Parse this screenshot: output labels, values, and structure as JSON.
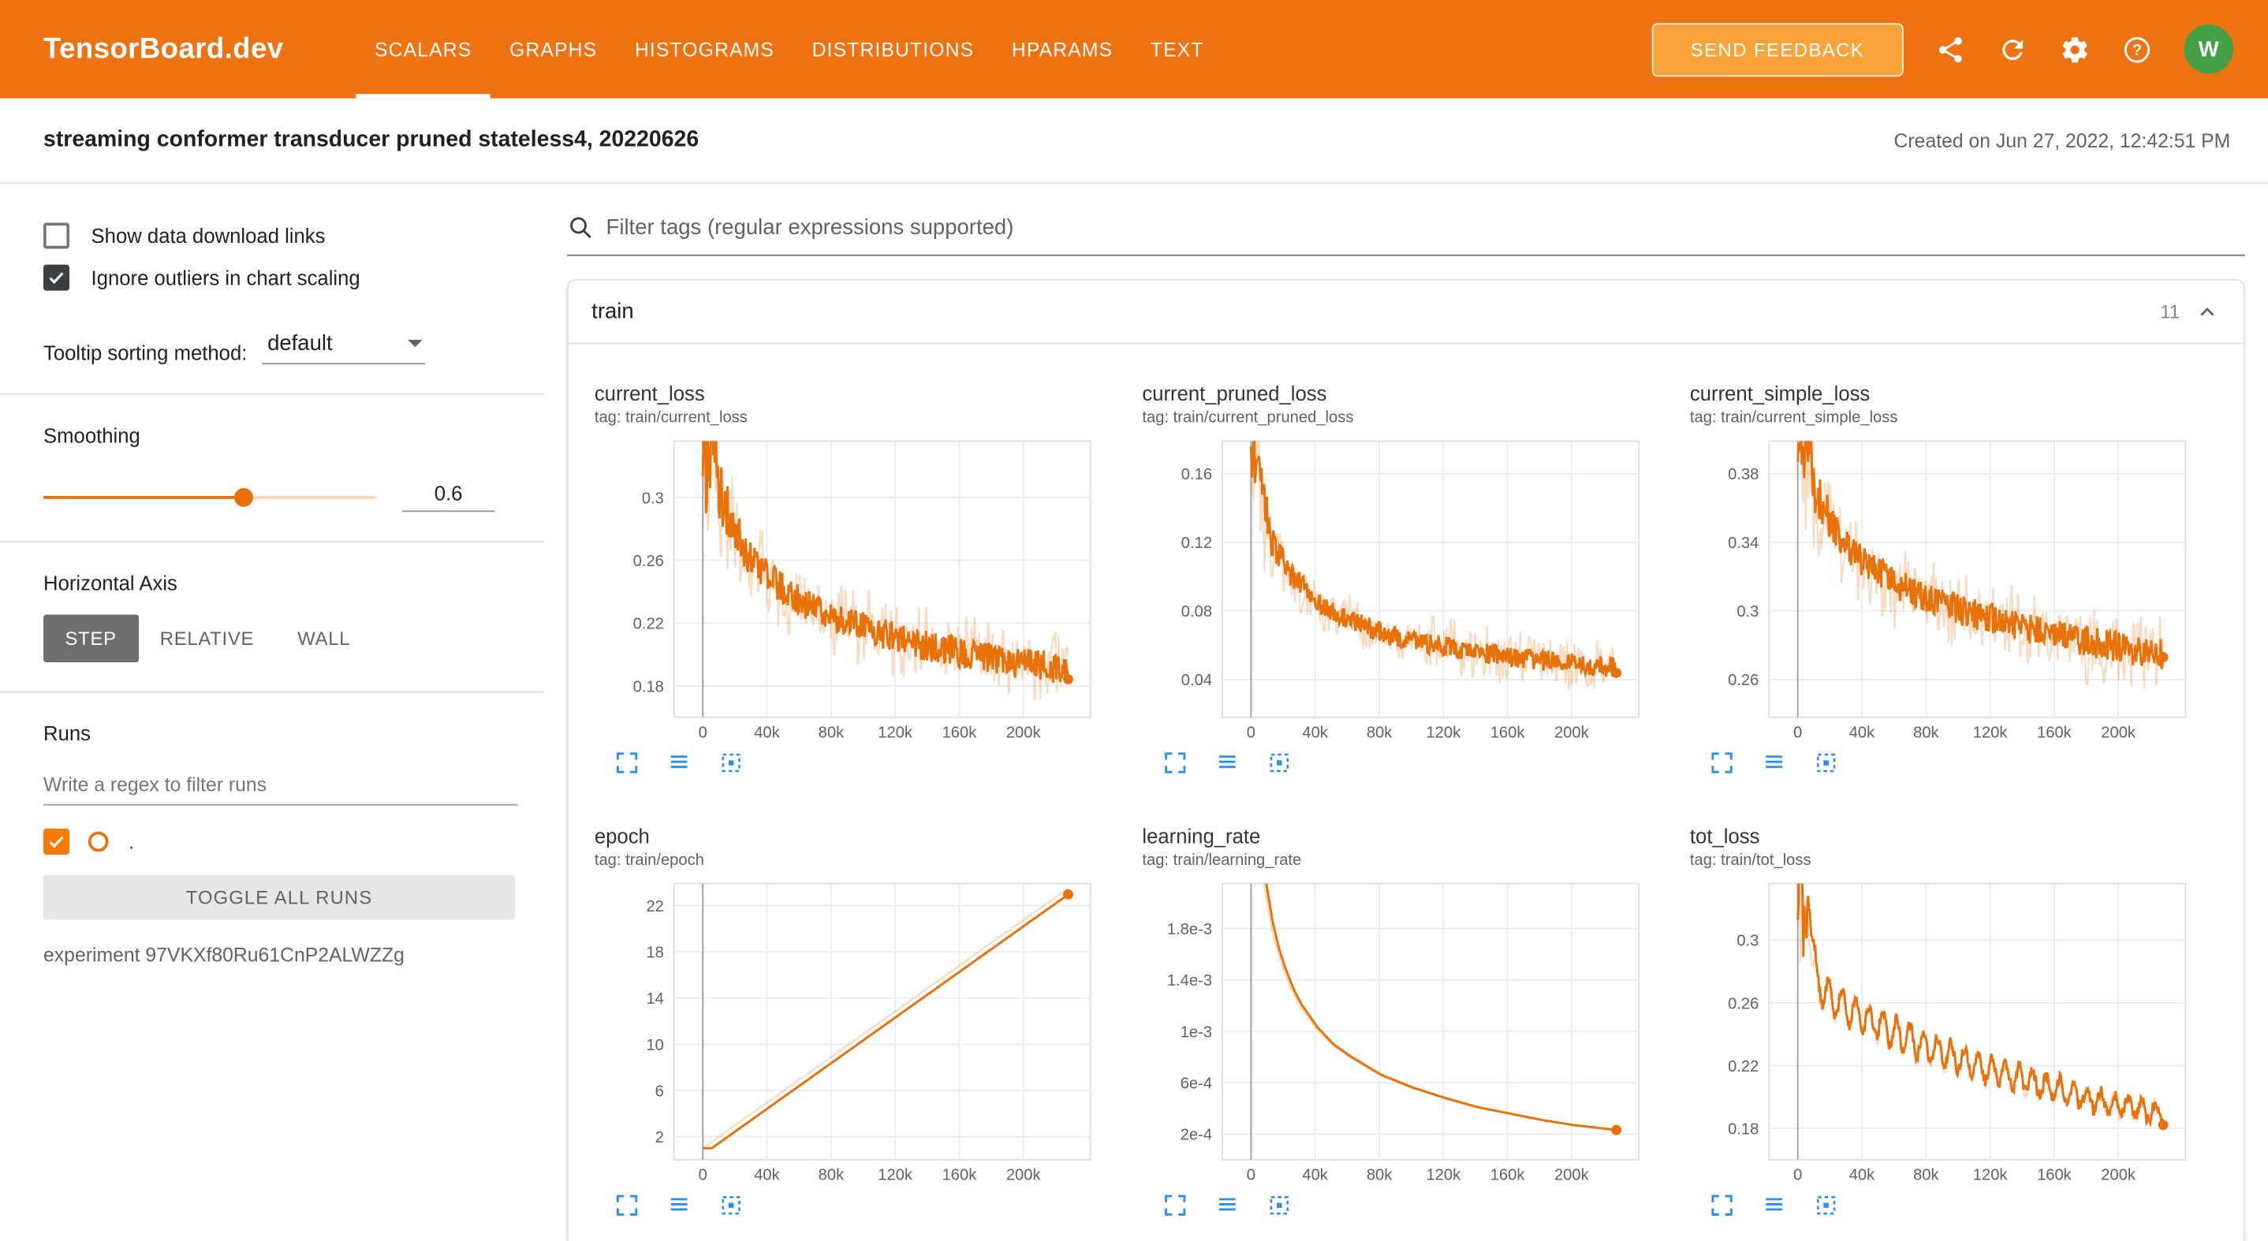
{
  "colors": {
    "header_bg": "#ee7211",
    "feedback_bg": "#f9a43b",
    "avatar_bg": "#43a047",
    "icon_blue": "#2b90ed",
    "series_orange": "#e8710a",
    "checkbox_dark": "#3c4043",
    "run_orange": "#f57c00"
  },
  "header": {
    "brand": "TensorBoard.dev",
    "tabs": [
      {
        "label": "SCALARS",
        "active": true
      },
      {
        "label": "GRAPHS",
        "active": false
      },
      {
        "label": "HISTOGRAMS",
        "active": false
      },
      {
        "label": "DISTRIBUTIONS",
        "active": false
      },
      {
        "label": "HPARAMS",
        "active": false
      },
      {
        "label": "TEXT",
        "active": false
      }
    ],
    "send_feedback_label": "SEND FEEDBACK",
    "avatar_letter": "W"
  },
  "titlebar": {
    "experiment_title": "streaming conformer transducer pruned stateless4, 20220626",
    "created": "Created on Jun 27, 2022, 12:42:51 PM"
  },
  "sidebar": {
    "show_download": {
      "label": "Show data download links",
      "checked": false
    },
    "ignore_outliers": {
      "label": "Ignore outliers in chart scaling",
      "checked": true
    },
    "tooltip_sorting": {
      "label": "Tooltip sorting method:",
      "value": "default"
    },
    "smoothing": {
      "label": "Smoothing",
      "value": "0.6",
      "fraction": 0.6
    },
    "horizontal_axis": {
      "label": "Horizontal Axis",
      "options": [
        "STEP",
        "RELATIVE",
        "WALL"
      ],
      "selected": "STEP"
    },
    "runs": {
      "label": "Runs",
      "filter_placeholder": "Write a regex to filter runs",
      "run_label": ".",
      "run_checked": true,
      "toggle_all_label": "TOGGLE ALL RUNS",
      "experiment": "experiment 97VKXf80Ru61CnP2ALWZZg"
    }
  },
  "main": {
    "filter_placeholder": "Filter tags (regular expressions supported)",
    "group": {
      "name": "train",
      "count": "11",
      "collapsed": false
    }
  },
  "chart_data": [
    {
      "type": "line",
      "title": "current_loss",
      "tag": "tag: train/current_loss",
      "series_color": "#e8710a",
      "x_domain": [
        -18000,
        242000
      ],
      "x_end": 228000,
      "x_ticks": [
        0,
        40000,
        80000,
        120000,
        160000,
        200000
      ],
      "x_tick_labels": [
        "0",
        "40k",
        "80k",
        "120k",
        "160k",
        "200k"
      ],
      "y_domain": [
        0.16,
        0.336
      ],
      "y_ticks": [
        0.18,
        0.22,
        0.26,
        0.3
      ],
      "y_tick_labels": [
        "0.18",
        "0.22",
        "0.26",
        "0.3"
      ],
      "trend": [
        [
          0,
          0.315
        ],
        [
          3000,
          0.345
        ],
        [
          8000,
          0.302
        ],
        [
          15000,
          0.285
        ],
        [
          25000,
          0.263
        ],
        [
          40000,
          0.247
        ],
        [
          60000,
          0.232
        ],
        [
          80000,
          0.223
        ],
        [
          100000,
          0.216
        ],
        [
          120000,
          0.21
        ],
        [
          140000,
          0.205
        ],
        [
          160000,
          0.201
        ],
        [
          180000,
          0.197
        ],
        [
          200000,
          0.194
        ],
        [
          228000,
          0.19
        ]
      ],
      "noise": {
        "raw": 0.028,
        "smooth": 0.01,
        "spike": 3.5,
        "spike_decay": 9000
      },
      "lag": 3000,
      "end_dot": true
    },
    {
      "type": "line",
      "title": "current_pruned_loss",
      "tag": "tag: train/current_pruned_loss",
      "series_color": "#e8710a",
      "x_domain": [
        -18000,
        242000
      ],
      "x_end": 228000,
      "x_ticks": [
        0,
        40000,
        80000,
        120000,
        160000,
        200000
      ],
      "x_tick_labels": [
        "0",
        "40k",
        "80k",
        "120k",
        "160k",
        "200k"
      ],
      "y_domain": [
        0.018,
        0.179
      ],
      "y_ticks": [
        0.04,
        0.08,
        0.12,
        0.16
      ],
      "y_tick_labels": [
        "0.04",
        "0.08",
        "0.12",
        "0.16"
      ],
      "trend": [
        [
          0,
          0.168
        ],
        [
          4000,
          0.15
        ],
        [
          10000,
          0.122
        ],
        [
          20000,
          0.103
        ],
        [
          40000,
          0.084
        ],
        [
          60000,
          0.074
        ],
        [
          80000,
          0.067
        ],
        [
          100000,
          0.062
        ],
        [
          120000,
          0.059
        ],
        [
          140000,
          0.056
        ],
        [
          160000,
          0.053
        ],
        [
          180000,
          0.051
        ],
        [
          200000,
          0.049
        ],
        [
          228000,
          0.047
        ]
      ],
      "noise": {
        "raw": 0.018,
        "smooth": 0.006,
        "spike": 3.2,
        "spike_decay": 9000
      },
      "lag": 3000,
      "end_dot": true
    },
    {
      "type": "line",
      "title": "current_simple_loss",
      "tag": "tag: train/current_simple_loss",
      "series_color": "#e8710a",
      "x_domain": [
        -18000,
        242000
      ],
      "x_end": 228000,
      "x_ticks": [
        0,
        40000,
        80000,
        120000,
        160000,
        200000
      ],
      "x_tick_labels": [
        "0",
        "40k",
        "80k",
        "120k",
        "160k",
        "200k"
      ],
      "y_domain": [
        0.238,
        0.399
      ],
      "y_ticks": [
        0.26,
        0.3,
        0.34,
        0.38
      ],
      "y_tick_labels": [
        "0.26",
        "0.3",
        "0.34",
        "0.38"
      ],
      "trend": [
        [
          0,
          0.385
        ],
        [
          3000,
          0.405
        ],
        [
          8000,
          0.372
        ],
        [
          15000,
          0.356
        ],
        [
          25000,
          0.341
        ],
        [
          40000,
          0.327
        ],
        [
          60000,
          0.315
        ],
        [
          80000,
          0.307
        ],
        [
          100000,
          0.3
        ],
        [
          120000,
          0.295
        ],
        [
          140000,
          0.29
        ],
        [
          160000,
          0.286
        ],
        [
          180000,
          0.282
        ],
        [
          200000,
          0.278
        ],
        [
          228000,
          0.274
        ]
      ],
      "noise": {
        "raw": 0.026,
        "smooth": 0.009,
        "spike": 3.2,
        "spike_decay": 9000
      },
      "lag": 3000,
      "end_dot": true
    },
    {
      "type": "line",
      "title": "epoch",
      "tag": "tag: train/epoch",
      "series_color": "#e8710a",
      "x_domain": [
        -18000,
        242000
      ],
      "x_end": 228000,
      "x_ticks": [
        0,
        40000,
        80000,
        120000,
        160000,
        200000
      ],
      "x_tick_labels": [
        "0",
        "40k",
        "80k",
        "120k",
        "160k",
        "200k"
      ],
      "y_domain": [
        0,
        23.9
      ],
      "y_ticks": [
        2,
        6,
        10,
        14,
        18,
        22
      ],
      "y_tick_labels": [
        "2",
        "6",
        "10",
        "14",
        "18",
        "22"
      ],
      "trend": [
        [
          0,
          1.0
        ],
        [
          228000,
          23.5
        ]
      ],
      "noise": {
        "raw": 0,
        "smooth": 0,
        "spike": 0,
        "spike_decay": 1
      },
      "lag": 5500,
      "end_dot": true
    },
    {
      "type": "line",
      "title": "learning_rate",
      "tag": "tag: train/learning_rate",
      "series_color": "#e8710a",
      "x_domain": [
        -18000,
        242000
      ],
      "x_end": 228000,
      "x_ticks": [
        0,
        40000,
        80000,
        120000,
        160000,
        200000
      ],
      "x_tick_labels": [
        "0",
        "40k",
        "80k",
        "120k",
        "160k",
        "200k"
      ],
      "y_domain": [
        0,
        0.00215
      ],
      "y_ticks": [
        0.0002,
        0.0006,
        0.001,
        0.0014,
        0.0018
      ],
      "y_tick_labels": [
        "2e-4",
        "6e-4",
        "1e-3",
        "1.4e-3",
        "1.8e-3"
      ],
      "trend": [
        [
          0,
          0.003
        ],
        [
          4000,
          0.0026
        ],
        [
          8000,
          0.00215
        ],
        [
          12000,
          0.00185
        ],
        [
          16000,
          0.00164
        ],
        [
          20000,
          0.00149
        ],
        [
          25000,
          0.00133
        ],
        [
          30000,
          0.00121
        ],
        [
          40000,
          0.00103
        ],
        [
          50000,
          0.0009
        ],
        [
          60000,
          0.00081
        ],
        [
          80000,
          0.00066
        ],
        [
          100000,
          0.00056
        ],
        [
          120000,
          0.00048
        ],
        [
          140000,
          0.00041
        ],
        [
          160000,
          0.00036
        ],
        [
          180000,
          0.00031
        ],
        [
          200000,
          0.00027
        ],
        [
          228000,
          0.00023
        ]
      ],
      "noise": {
        "raw": 0,
        "smooth": 0,
        "spike": 0,
        "spike_decay": 1
      },
      "lag": 1500,
      "end_dot": true
    },
    {
      "type": "line",
      "title": "tot_loss",
      "tag": "tag: train/tot_loss",
      "series_color": "#e8710a",
      "x_domain": [
        -18000,
        242000
      ],
      "x_end": 228000,
      "x_ticks": [
        0,
        40000,
        80000,
        120000,
        160000,
        200000
      ],
      "x_tick_labels": [
        "0",
        "40k",
        "80k",
        "120k",
        "160k",
        "200k"
      ],
      "y_domain": [
        0.16,
        0.336
      ],
      "y_ticks": [
        0.18,
        0.22,
        0.26,
        0.3
      ],
      "y_tick_labels": [
        "0.18",
        "0.22",
        "0.26",
        "0.3"
      ],
      "trend": [
        [
          0,
          0.33
        ],
        [
          2000,
          0.3
        ],
        [
          5000,
          0.33
        ],
        [
          9000,
          0.285
        ],
        [
          14000,
          0.268
        ],
        [
          20000,
          0.262
        ],
        [
          30000,
          0.256
        ],
        [
          40000,
          0.251
        ],
        [
          55000,
          0.243
        ],
        [
          70000,
          0.236
        ],
        [
          85000,
          0.23
        ],
        [
          100000,
          0.224
        ],
        [
          120000,
          0.217
        ],
        [
          140000,
          0.211
        ],
        [
          160000,
          0.205
        ],
        [
          180000,
          0.199
        ],
        [
          200000,
          0.194
        ],
        [
          228000,
          0.189
        ]
      ],
      "osc": {
        "amp": 0.011,
        "period": 8500,
        "decay": 0.45
      },
      "noise": {
        "raw": 0.005,
        "smooth": 0.004,
        "spike": 16,
        "spike_decay": 2600
      },
      "lag": 1500,
      "end_dot": true
    }
  ]
}
